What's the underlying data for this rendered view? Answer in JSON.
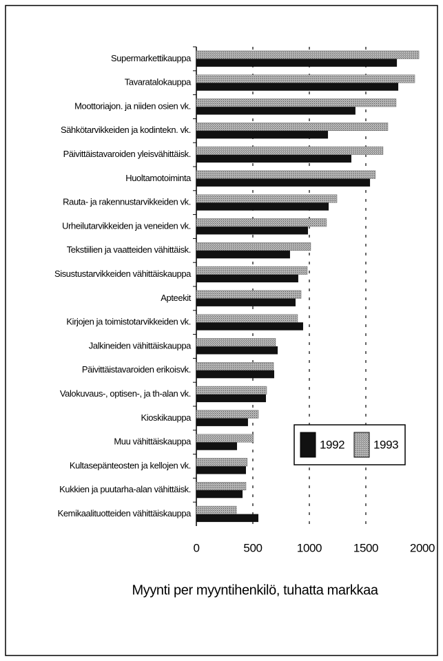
{
  "chart_data": {
    "type": "bar",
    "orientation": "horizontal",
    "categories": [
      "Supermarkettikauppa",
      "Tavaratalokauppa",
      "Moottoriajon. ja niiden osien vk.",
      "Sähkötarvikkeiden ja kodintekn. vk.",
      "Päivittäistavaroiden yleisvähittäisk.",
      "Huoltamotoiminta",
      "Rauta- ja rakennustarvikkeiden vk.",
      "Urheilutarvikkeiden ja veneiden vk.",
      "Tekstiilien ja vaatteiden vähittäisk.",
      "Sisustustarvikkeiden vähittäiskauppa",
      "Apteekit",
      "Kirjojen ja toimistotarvikkeiden vk.",
      "Jalkineiden vähittäiskauppa",
      "Päivittäistavaroiden erikoisvk.",
      "Valokuvaus-, optisen-, ja th-alan vk.",
      "Kioskikauppa",
      "Muu vähittäiskauppa",
      "Kultasepänteosten ja kellojen vk.",
      "Kukkien ja puutarha-alan vähittäisk.",
      "Kemikaalituotteiden vähittäiskauppa"
    ],
    "series": [
      {
        "name": "1992",
        "color": "#111111",
        "values": [
          1775,
          1787,
          1408,
          1165,
          1372,
          1537,
          1171,
          988,
          829,
          902,
          878,
          945,
          720,
          689,
          616,
          457,
          360,
          439,
          409,
          549
        ]
      },
      {
        "name": "1993",
        "color": "#b8b8b8",
        "values": [
          1970,
          1933,
          1768,
          1695,
          1652,
          1585,
          1244,
          1152,
          1012,
          982,
          927,
          896,
          701,
          683,
          622,
          549,
          506,
          451,
          439,
          354
        ]
      }
    ],
    "xlabel": "Myynti per myyntihenkilö, tuhatta markkaa",
    "xlim": [
      0,
      2000
    ],
    "xticks": [
      0,
      500,
      1000,
      1500,
      2000
    ],
    "grid": true
  }
}
